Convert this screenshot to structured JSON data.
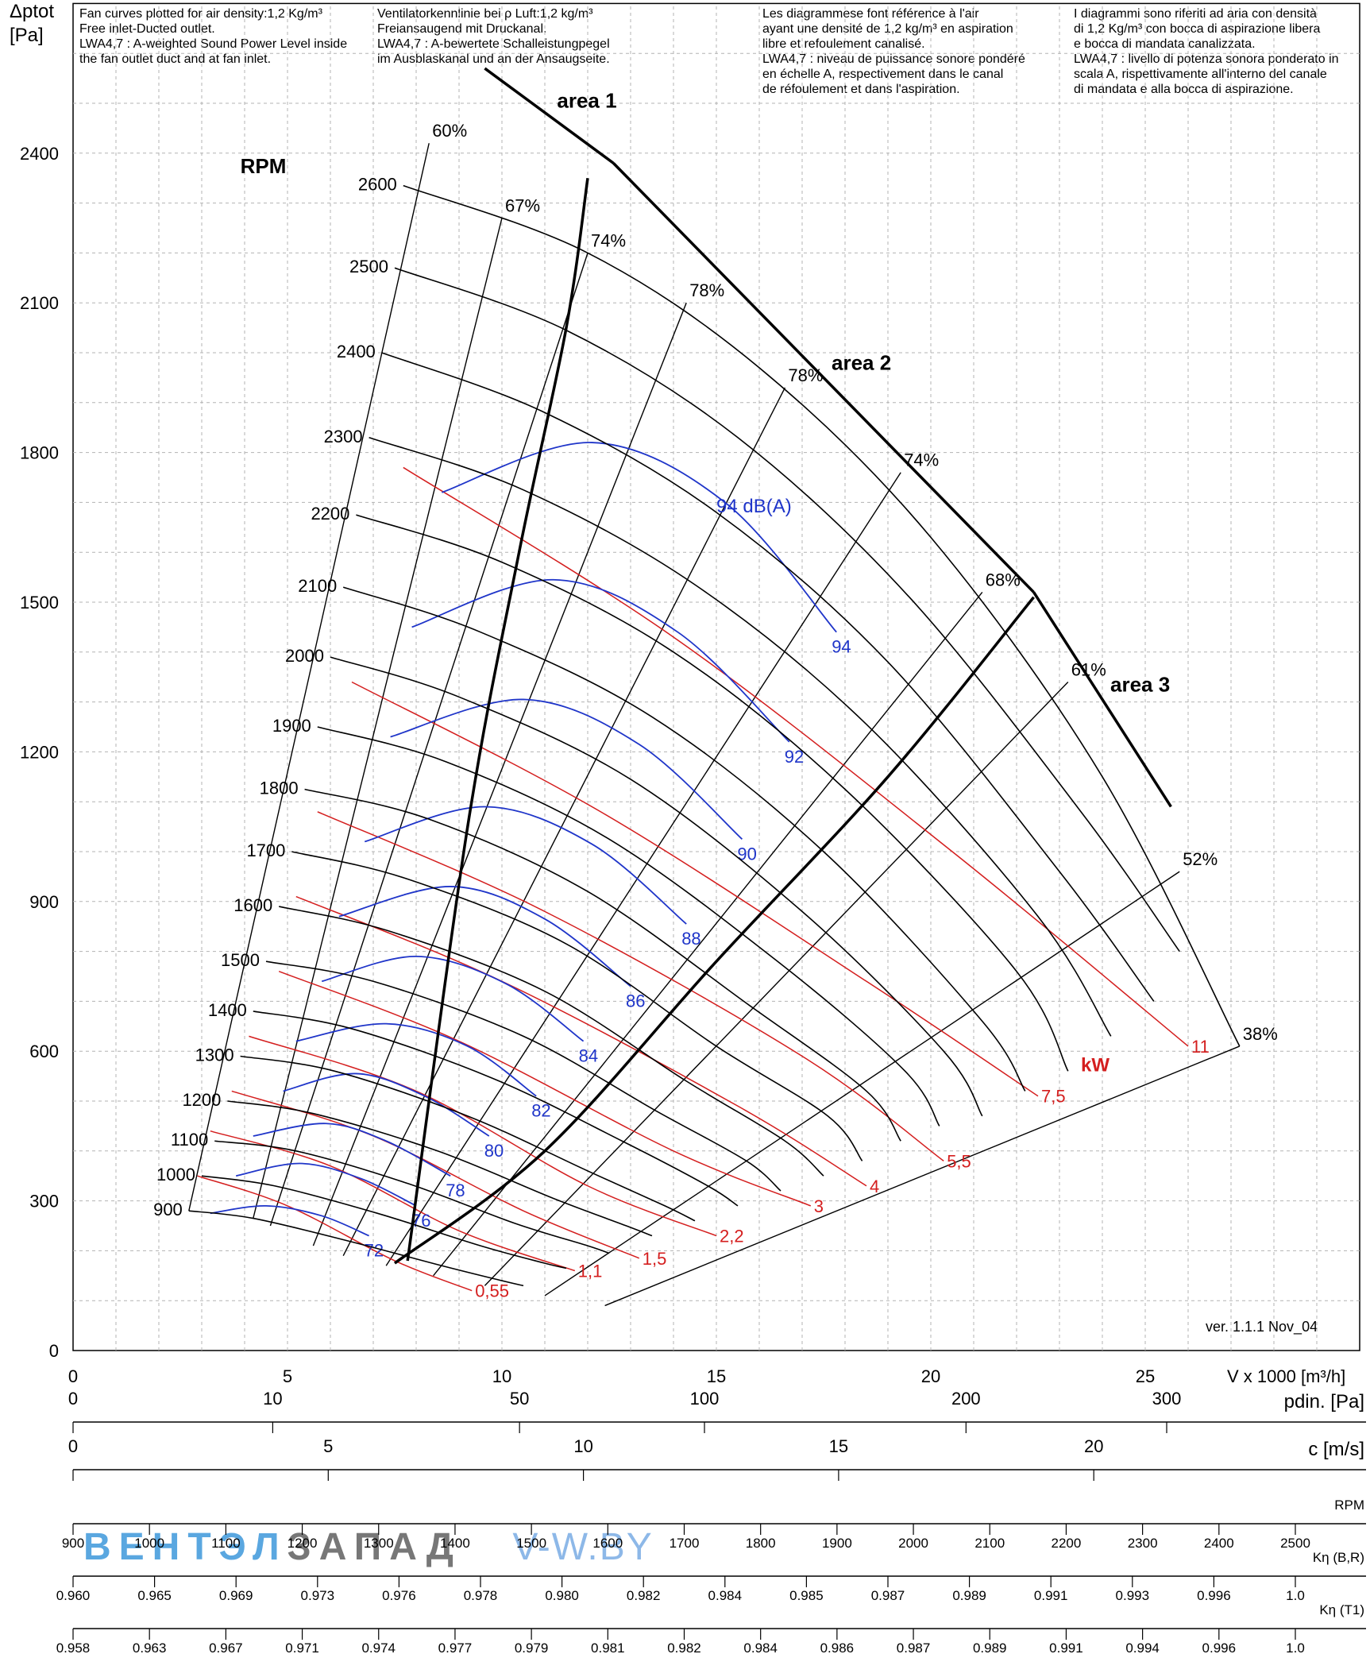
{
  "header_notes": [
    "Fan curves plotted for air density:1,2 Kg/m³\nFree inlet-Ducted outlet.\nLWA4,7 : A-weighted Sound Power Level inside\nthe fan outlet duct and at fan inlet.",
    "Ventilatorkennlinie bei ρ Luft:1,2 kg/m³\nFreiansaugend mit Druckanal.\nLWA4,7 : A-bewertete Schalleistungpegel\nim Ausblaskanal und an der Ansaugseite.",
    "Les diagrammese font référence à l'air\nayant une densité de 1,2 kg/m³ en aspiration\nlibre et refoulement canalisé.\nLWA4,7 : niveau de puissance sonore pondéré\nen échelle A, respectivement dans le canal\nde réfoulement et dans l'aspiration.",
    "I diagrammi sono riferiti ad aria con densità\ndi 1,2 Kg/m³ con bocca di aspirazione libera\ne bocca di mandata canalizzata.\nLWA4,7 : livello di potenza sonora ponderato in\nscala A, rispettivamente all'interno del canale\ndi mandata e alla bocca di aspirazione."
  ],
  "y_axis_title": "Δptot\n[Pa]",
  "x_axis_title": "V x 1000 [m³/h]",
  "version": "ver. 1.1.1 Nov_04",
  "rpm_title": "RPM",
  "kw_title": "kW",
  "db_title": "94 dB(A)",
  "watermark": {
    "part1": "ВЕНТЭЛ",
    "part2": "ЗАПАД",
    "part3": "V-W.BY"
  },
  "colors": {
    "black": "#000000",
    "blue": "#1f35c9",
    "red": "#d41e1e",
    "grid": "#b3b3b3"
  },
  "chart_data": {
    "type": "line",
    "title": "",
    "xlabel": "V x 1000 [m³/h]",
    "ylabel": "Δptot [Pa]",
    "xlim": [
      0,
      30
    ],
    "ylim": [
      0,
      2700
    ],
    "x_ticks": [
      0,
      5,
      10,
      15,
      20,
      25
    ],
    "y_ticks": [
      0,
      300,
      600,
      900,
      1200,
      1500,
      1800,
      2100,
      2400
    ],
    "grid": true,
    "speed_curves_rpm": [
      {
        "rpm": 2600,
        "x": [
          7.7,
          12.0,
          16.0,
          20.0,
          24.0,
          27.2
        ],
        "y": [
          2335,
          2200,
          1970,
          1630,
          1150,
          610
        ]
      },
      {
        "rpm": 2500,
        "x": [
          7.5,
          11.5,
          15.5,
          19.5,
          23.5,
          25.8
        ],
        "y": [
          2170,
          2045,
          1830,
          1510,
          1080,
          800
        ]
      },
      {
        "rpm": 2400,
        "x": [
          7.2,
          11.0,
          15.0,
          19.0,
          23.0,
          25.2
        ],
        "y": [
          2000,
          1880,
          1680,
          1380,
          960,
          700
        ]
      },
      {
        "rpm": 2300,
        "x": [
          6.9,
          10.5,
          14.5,
          18.5,
          22.5,
          24.2
        ],
        "y": [
          1830,
          1725,
          1535,
          1255,
          870,
          630
        ]
      },
      {
        "rpm": 2200,
        "x": [
          6.6,
          10.0,
          14.0,
          18.0,
          22.0,
          23.2
        ],
        "y": [
          1675,
          1580,
          1400,
          1125,
          760,
          560
        ]
      },
      {
        "rpm": 2100,
        "x": [
          6.3,
          9.5,
          13.5,
          17.5,
          21.2,
          22.2
        ],
        "y": [
          1530,
          1440,
          1270,
          1000,
          660,
          520
        ]
      },
      {
        "rpm": 2000,
        "x": [
          6.0,
          9.0,
          13.0,
          17.0,
          20.3,
          21.2
        ],
        "y": [
          1390,
          1310,
          1145,
          880,
          600,
          470
        ]
      },
      {
        "rpm": 1900,
        "x": [
          5.7,
          8.7,
          12.5,
          16.5,
          19.4,
          20.2
        ],
        "y": [
          1250,
          1180,
          1025,
          775,
          560,
          450
        ]
      },
      {
        "rpm": 1800,
        "x": [
          5.4,
          8.3,
          12.0,
          15.8,
          18.5,
          19.3
        ],
        "y": [
          1125,
          1065,
          920,
          690,
          520,
          420
        ]
      },
      {
        "rpm": 1700,
        "x": [
          5.1,
          7.8,
          11.5,
          15.0,
          17.6,
          18.4
        ],
        "y": [
          1000,
          945,
          815,
          610,
          470,
          380
        ]
      },
      {
        "rpm": 1600,
        "x": [
          4.8,
          7.4,
          11.0,
          14.3,
          16.6,
          17.5
        ],
        "y": [
          890,
          840,
          720,
          540,
          420,
          350
        ]
      },
      {
        "rpm": 1500,
        "x": [
          4.5,
          7.0,
          10.5,
          13.6,
          15.7,
          16.5
        ],
        "y": [
          780,
          740,
          630,
          480,
          380,
          320
        ]
      },
      {
        "rpm": 1400,
        "x": [
          4.2,
          6.5,
          9.8,
          12.8,
          14.8,
          15.5
        ],
        "y": [
          680,
          645,
          545,
          420,
          330,
          290
        ]
      },
      {
        "rpm": 1300,
        "x": [
          3.9,
          6.1,
          9.2,
          12.0,
          13.8,
          14.5
        ],
        "y": [
          590,
          560,
          470,
          360,
          290,
          260
        ]
      },
      {
        "rpm": 1200,
        "x": [
          3.6,
          5.6,
          8.5,
          11.2,
          12.9,
          13.5
        ],
        "y": [
          500,
          475,
          400,
          305,
          250,
          230
        ]
      },
      {
        "rpm": 1100,
        "x": [
          3.3,
          5.2,
          7.8,
          10.3,
          12.0,
          12.5
        ],
        "y": [
          420,
          400,
          335,
          255,
          210,
          195
        ]
      },
      {
        "rpm": 1000,
        "x": [
          3.0,
          4.7,
          7.1,
          9.5,
          11.0,
          11.5
        ],
        "y": [
          350,
          330,
          275,
          210,
          175,
          165
        ]
      },
      {
        "rpm": 900,
        "x": [
          2.7,
          4.2,
          6.4,
          8.6,
          10.0,
          10.5
        ],
        "y": [
          280,
          265,
          220,
          170,
          140,
          130
        ]
      }
    ],
    "efficiency_lines_pct": [
      {
        "label": "60%",
        "x": [
          2.7,
          8.3
        ],
        "y": [
          280,
          2420
        ]
      },
      {
        "label": "67%",
        "x": [
          4.2,
          10.0
        ],
        "y": [
          265,
          2270
        ]
      },
      {
        "label": "74%",
        "x": [
          4.6,
          12.0
        ],
        "y": [
          250,
          2200
        ]
      },
      {
        "label": "78%",
        "x": [
          5.6,
          14.3
        ],
        "y": [
          210,
          2100
        ]
      },
      {
        "label": "78%",
        "x": [
          6.3,
          16.6
        ],
        "y": [
          190,
          1930
        ]
      },
      {
        "label": "74%",
        "x": [
          7.3,
          19.3
        ],
        "y": [
          170,
          1760
        ]
      },
      {
        "label": "68%",
        "x": [
          8.4,
          21.2
        ],
        "y": [
          150,
          1520
        ]
      },
      {
        "label": "61%",
        "x": [
          9.6,
          23.2
        ],
        "y": [
          130,
          1340
        ]
      },
      {
        "label": "52%",
        "x": [
          11.0,
          25.8
        ],
        "y": [
          110,
          960
        ]
      },
      {
        "label": "38%",
        "x": [
          12.4,
          27.2
        ],
        "y": [
          90,
          610
        ]
      }
    ],
    "sound_level_curves_dBA": [
      {
        "level": "72",
        "x": [
          3.2,
          4.5,
          5.8,
          6.9
        ],
        "y": [
          275,
          290,
          270,
          230
        ]
      },
      {
        "level": "76",
        "x": [
          3.8,
          5.3,
          6.7,
          8.0
        ],
        "y": [
          350,
          375,
          345,
          290
        ]
      },
      {
        "level": "78",
        "x": [
          4.2,
          5.9,
          7.3,
          8.8
        ],
        "y": [
          430,
          455,
          420,
          350
        ]
      },
      {
        "level": "80",
        "x": [
          4.9,
          6.6,
          8.2,
          9.7
        ],
        "y": [
          520,
          555,
          510,
          430
        ]
      },
      {
        "level": "82",
        "x": [
          5.2,
          7.3,
          9.2,
          10.8
        ],
        "y": [
          620,
          655,
          610,
          510
        ]
      },
      {
        "level": "84",
        "x": [
          5.8,
          8.0,
          10.1,
          11.9
        ],
        "y": [
          740,
          790,
          735,
          620
        ]
      },
      {
        "level": "86",
        "x": [
          6.2,
          8.8,
          11.0,
          13.0
        ],
        "y": [
          870,
          930,
          865,
          730
        ]
      },
      {
        "level": "88",
        "x": [
          6.8,
          9.6,
          12.1,
          14.3
        ],
        "y": [
          1020,
          1090,
          1015,
          855
        ]
      },
      {
        "level": "90",
        "x": [
          7.4,
          10.5,
          13.2,
          15.6
        ],
        "y": [
          1230,
          1305,
          1215,
          1025
        ]
      },
      {
        "level": "92",
        "x": [
          7.9,
          11.2,
          14.1,
          16.7
        ],
        "y": [
          1450,
          1545,
          1440,
          1220
        ]
      },
      {
        "level": "94",
        "x": [
          8.6,
          12.1,
          15.2,
          17.8
        ],
        "y": [
          1720,
          1820,
          1700,
          1440
        ]
      }
    ],
    "power_curves_kW": [
      {
        "label": "0,55",
        "x": [
          2.9,
          5.0,
          7.5,
          9.3
        ],
        "y": [
          350,
          290,
          180,
          120
        ]
      },
      {
        "label": "1,1",
        "x": [
          3.2,
          6.0,
          9.0,
          11.7
        ],
        "y": [
          440,
          370,
          240,
          160
        ]
      },
      {
        "label": "1,5",
        "x": [
          3.7,
          7.0,
          10.5,
          13.2
        ],
        "y": [
          520,
          430,
          280,
          185
        ]
      },
      {
        "label": "2,2",
        "x": [
          4.1,
          8.0,
          12.0,
          15.0
        ],
        "y": [
          630,
          520,
          330,
          230
        ]
      },
      {
        "label": "3",
        "x": [
          4.8,
          9.0,
          14.0,
          17.2
        ],
        "y": [
          760,
          620,
          400,
          290
        ]
      },
      {
        "label": "4",
        "x": [
          5.2,
          10.0,
          15.5,
          18.5
        ],
        "y": [
          910,
          740,
          490,
          330
        ]
      },
      {
        "label": "5,5",
        "x": [
          5.7,
          11.0,
          17.0,
          20.3
        ],
        "y": [
          1080,
          880,
          590,
          380
        ]
      },
      {
        "label": "7,5",
        "x": [
          6.5,
          12.3,
          18.5,
          22.5
        ],
        "y": [
          1340,
          1080,
          740,
          510
        ]
      },
      {
        "label": "11",
        "x": [
          7.7,
          14.0,
          20.5,
          26.0
        ],
        "y": [
          1770,
          1430,
          1000,
          610
        ]
      }
    ],
    "areas": [
      {
        "label": "area 1",
        "x": [
          9.6,
          12.6
        ],
        "y": [
          2570,
          2380
        ]
      },
      {
        "label": "area 2",
        "x": [
          12.6,
          22.4
        ],
        "y": [
          2380,
          1520
        ]
      },
      {
        "label": "area 3",
        "x": [
          22.4,
          25.6
        ],
        "y": [
          1520,
          1090
        ]
      }
    ],
    "area_boundaries": [
      {
        "x": [
          7.8,
          9.2,
          10.4,
          11.5,
          12.0
        ],
        "y": [
          180,
          1050,
          1600,
          2050,
          2350
        ]
      },
      {
        "x": [
          7.5,
          11.0,
          15.0,
          19.0,
          22.4
        ],
        "y": [
          175,
          400,
          780,
          1150,
          1510
        ]
      }
    ],
    "bottom_scales": [
      {
        "label": "pdin. [Pa]",
        "ticks": [
          "0",
          "10",
          "50",
          "100",
          "200",
          "300"
        ]
      },
      {
        "label": "c [m/s]",
        "ticks": [
          "0",
          "5",
          "10",
          "15",
          "20"
        ]
      },
      {
        "label": "RPM",
        "ticks": [
          "900",
          "1000",
          "1100",
          "1200",
          "1300",
          "1400",
          "1500",
          "1600",
          "1700",
          "1800",
          "1900",
          "2000",
          "2100",
          "2200",
          "2300",
          "2400",
          "2500"
        ]
      },
      {
        "label": "Kη (B,R)",
        "ticks": [
          "0.960",
          "0.965",
          "0.969",
          "0.973",
          "0.976",
          "0.978",
          "0.980",
          "0.982",
          "0.984",
          "0.985",
          "0.987",
          "0.989",
          "0.991",
          "0.993",
          "0.996",
          "1.0"
        ]
      },
      {
        "label": "Kη (T1)",
        "ticks": [
          "0.958",
          "0.963",
          "0.967",
          "0.971",
          "0.974",
          "0.977",
          "0.979",
          "0.981",
          "0.982",
          "0.984",
          "0.986",
          "0.987",
          "0.989",
          "0.991",
          "0.994",
          "0.996",
          "1.0"
        ]
      }
    ]
  }
}
